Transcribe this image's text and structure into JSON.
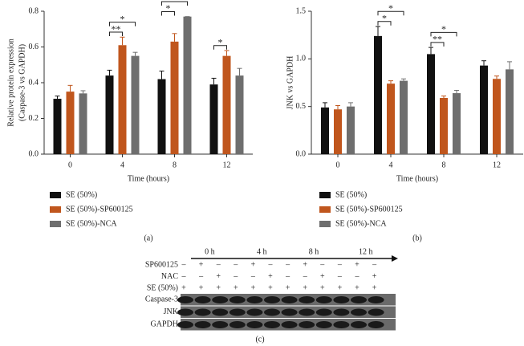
{
  "chart_data": [
    {
      "type": "bar",
      "panel_label": "(a)",
      "ylabel": [
        "Relative protein expression",
        "(Caspase-3 vs GAPDH)"
      ],
      "xlabel": "Time (hours)",
      "categories": [
        "0",
        "4",
        "8",
        "12"
      ],
      "series": [
        {
          "name": "SE (50%)",
          "color": "#111111",
          "values": [
            0.31,
            0.44,
            0.42,
            0.39
          ],
          "errors": [
            0.015,
            0.03,
            0.045,
            0.035
          ]
        },
        {
          "name": "SE (50%)-SP600125",
          "color": "#c0561d",
          "values": [
            0.35,
            0.61,
            0.63,
            0.55
          ],
          "errors": [
            0.035,
            0.045,
            0.045,
            0.03
          ]
        },
        {
          "name": "SE (50%)-NCA",
          "color": "#6e6e6e",
          "values": [
            0.34,
            0.55,
            0.77,
            0.44
          ],
          "errors": [
            0.015,
            0.02,
            0,
            0.04
          ]
        }
      ],
      "ylim": [
        0,
        0.8
      ],
      "yticks": [
        {
          "value": 0,
          "label": "0.0"
        },
        0.2,
        0.4,
        0.6,
        0.8
      ],
      "significance": [
        {
          "category": 1,
          "series": [
            0,
            1
          ],
          "label": "**"
        },
        {
          "category": 1,
          "series": [
            0,
            2
          ],
          "label": "*"
        },
        {
          "category": 2,
          "series": [
            0,
            1
          ],
          "label": "*"
        },
        {
          "category": 2,
          "series": [
            0,
            2
          ],
          "label": "**"
        },
        {
          "category": 3,
          "series": [
            0,
            1
          ],
          "label": "*"
        }
      ]
    },
    {
      "type": "bar",
      "panel_label": "(b)",
      "ylabel": [
        "JNK vs GAPDH"
      ],
      "xlabel": "Time (hours)",
      "categories": [
        "0",
        "4",
        "8",
        "12"
      ],
      "series": [
        {
          "name": "SE (50%)",
          "color": "#111111",
          "values": [
            0.49,
            1.24,
            1.05,
            0.93
          ],
          "errors": [
            0.05,
            0.1,
            0.07,
            0.05
          ]
        },
        {
          "name": "SE (50%)-SP600125",
          "color": "#c0561d",
          "values": [
            0.47,
            0.74,
            0.59,
            0.79
          ],
          "errors": [
            0.04,
            0.03,
            0.02,
            0.03
          ]
        },
        {
          "name": "SE (50%)-NCA",
          "color": "#6e6e6e",
          "values": [
            0.5,
            0.77,
            0.64,
            0.89
          ],
          "errors": [
            0.04,
            0.02,
            0.03,
            0.08
          ]
        }
      ],
      "ylim": [
        0,
        1.5
      ],
      "yticks": [
        {
          "value": 0,
          "label": "0.0"
        },
        0.5,
        {
          "value": 1,
          "label": "1.0"
        },
        1.5
      ],
      "significance": [
        {
          "category": 1,
          "series": [
            0,
            1
          ],
          "label": "*"
        },
        {
          "category": 1,
          "series": [
            0,
            2
          ],
          "label": "*"
        },
        {
          "category": 2,
          "series": [
            0,
            1
          ],
          "label": "**"
        },
        {
          "category": 2,
          "series": [
            0,
            2
          ],
          "label": "*"
        }
      ]
    }
  ],
  "blot": {
    "panel_label": "(c)",
    "times": [
      "0 h",
      "4 h",
      "8 h",
      "12 h"
    ],
    "treatments": [
      {
        "name": "SP600125",
        "signs": [
          "–",
          "+",
          "–",
          "–",
          "+",
          "–",
          "–",
          "+",
          "–",
          "–",
          "+",
          "–"
        ]
      },
      {
        "name": "NAC",
        "signs": [
          "–",
          "–",
          "+",
          "–",
          "–",
          "+",
          "–",
          "–",
          "+",
          "–",
          "–",
          "+"
        ]
      },
      {
        "name": "SE (50%)",
        "signs": [
          "+",
          "+",
          "+",
          "+",
          "+",
          "+",
          "+",
          "+",
          "+",
          "+",
          "+",
          "+"
        ]
      }
    ],
    "proteins": [
      "Caspase-3",
      "JNK",
      "GAPDH"
    ]
  }
}
